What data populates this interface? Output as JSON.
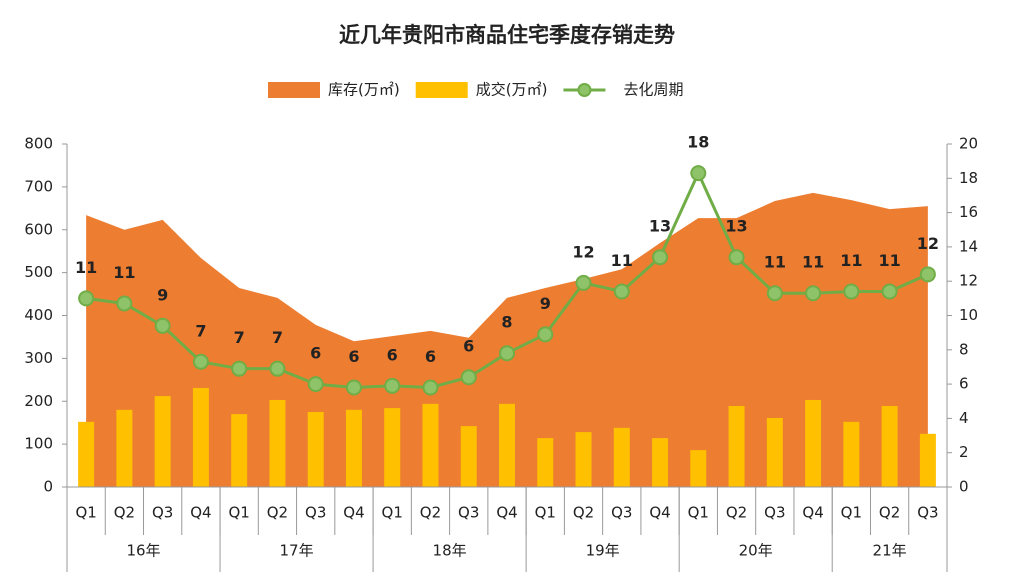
{
  "chart_data": {
    "type": "combo",
    "title": "近几年贵阳市商品住宅季度存销走势",
    "categories": [
      "Q1",
      "Q2",
      "Q3",
      "Q4",
      "Q1",
      "Q2",
      "Q3",
      "Q4",
      "Q1",
      "Q2",
      "Q3",
      "Q4",
      "Q1",
      "Q2",
      "Q3",
      "Q4",
      "Q1",
      "Q2",
      "Q3",
      "Q4",
      "Q1",
      "Q2",
      "Q3"
    ],
    "category_groups": [
      "16年",
      "17年",
      "18年",
      "19年",
      "20年",
      "21年"
    ],
    "ylim": [
      0,
      800
    ],
    "yticks": [
      0,
      100,
      200,
      300,
      400,
      500,
      600,
      700,
      800
    ],
    "y2lim": [
      0,
      20
    ],
    "y2ticks": [
      0,
      2,
      4,
      6,
      8,
      10,
      12,
      14,
      16,
      18,
      20
    ],
    "grid": false,
    "legend": "top",
    "series": [
      {
        "name": "库存(万㎡)",
        "type": "area",
        "color": "#ed7d31",
        "values": [
          634,
          600,
          623,
          534,
          464,
          441,
          378,
          340,
          352,
          364,
          348,
          441,
          464,
          485,
          508,
          569,
          627,
          627,
          667,
          686,
          669,
          648,
          655
        ]
      },
      {
        "name": "成交(万㎡)",
        "type": "bar",
        "color": "#ffc000",
        "values": [
          152,
          180,
          212,
          231,
          170,
          203,
          175,
          180,
          184,
          194,
          142,
          194,
          114,
          128,
          138,
          114,
          86,
          189,
          161,
          203,
          152,
          189,
          124
        ]
      },
      {
        "name": "去化周期",
        "type": "line",
        "axis": "y2",
        "color": "#70ad47",
        "values": [
          11.0,
          10.7,
          9.4,
          7.3,
          6.9,
          6.9,
          6.0,
          5.8,
          5.9,
          5.8,
          6.4,
          7.8,
          8.9,
          11.9,
          11.4,
          13.4,
          18.3,
          13.4,
          11.3,
          11.3,
          11.4,
          11.4,
          12.4
        ],
        "value_labels": [
          "11",
          "11",
          "9",
          "7",
          "7",
          "7",
          "6",
          "6",
          "6",
          "6",
          "6",
          "8",
          "9",
          "12",
          "11",
          "13",
          "18",
          "13",
          "11",
          "11",
          "11",
          "11",
          "12"
        ]
      }
    ]
  }
}
